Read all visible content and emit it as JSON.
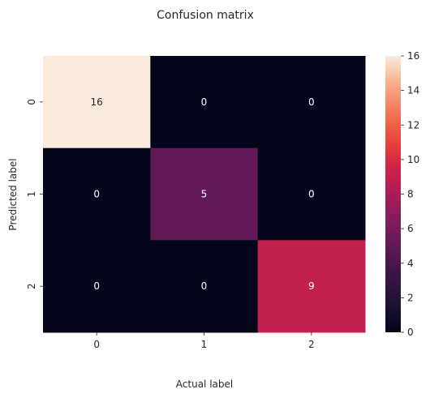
{
  "chart_data": {
    "type": "heatmap",
    "title": "Confusion matrix",
    "xlabel": "Actual label",
    "ylabel": "Predicted label",
    "x_categories": [
      "0",
      "1",
      "2"
    ],
    "y_categories": [
      "0",
      "1",
      "2"
    ],
    "values": [
      [
        16,
        0,
        0
      ],
      [
        0,
        5,
        0
      ],
      [
        0,
        0,
        9
      ]
    ],
    "colorbar": {
      "min": 0,
      "max": 16,
      "ticks": [
        0,
        2,
        4,
        6,
        8,
        10,
        12,
        14,
        16
      ],
      "colormap": "rocket"
    },
    "annotation_colors": {
      "on_dark": "#ffffff",
      "on_light": "#262626"
    }
  }
}
